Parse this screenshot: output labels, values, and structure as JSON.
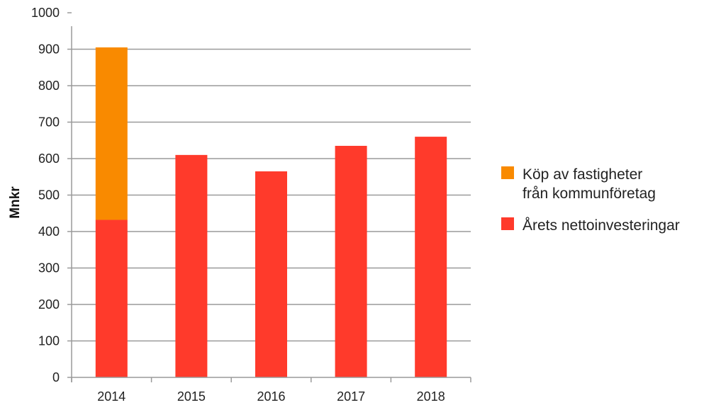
{
  "chart_data": {
    "type": "bar",
    "stacked": true,
    "categories": [
      "2014",
      "2015",
      "2016",
      "2017",
      "2018"
    ],
    "series": [
      {
        "name": "Årets nettoinvesteringar",
        "color": "#ff3a2b",
        "values": [
          432,
          610,
          565,
          635,
          660
        ]
      },
      {
        "name": "Köp av fastigheter från kommunföretag",
        "color": "#f98a00",
        "values": [
          473,
          0,
          0,
          0,
          0
        ]
      }
    ],
    "ylabel": "Mnkr",
    "ylim": [
      0,
      1000
    ],
    "yticks": [
      0,
      100,
      200,
      300,
      400,
      500,
      600,
      700,
      800,
      900,
      1000
    ],
    "grid": true,
    "legend_position": "right",
    "legend": [
      {
        "lines": [
          "Köp av fastigheter",
          "från kommunföretag"
        ],
        "color": "#f98a00"
      },
      {
        "lines": [
          "Årets nettoinvesteringar"
        ],
        "color": "#ff3a2b"
      }
    ]
  }
}
